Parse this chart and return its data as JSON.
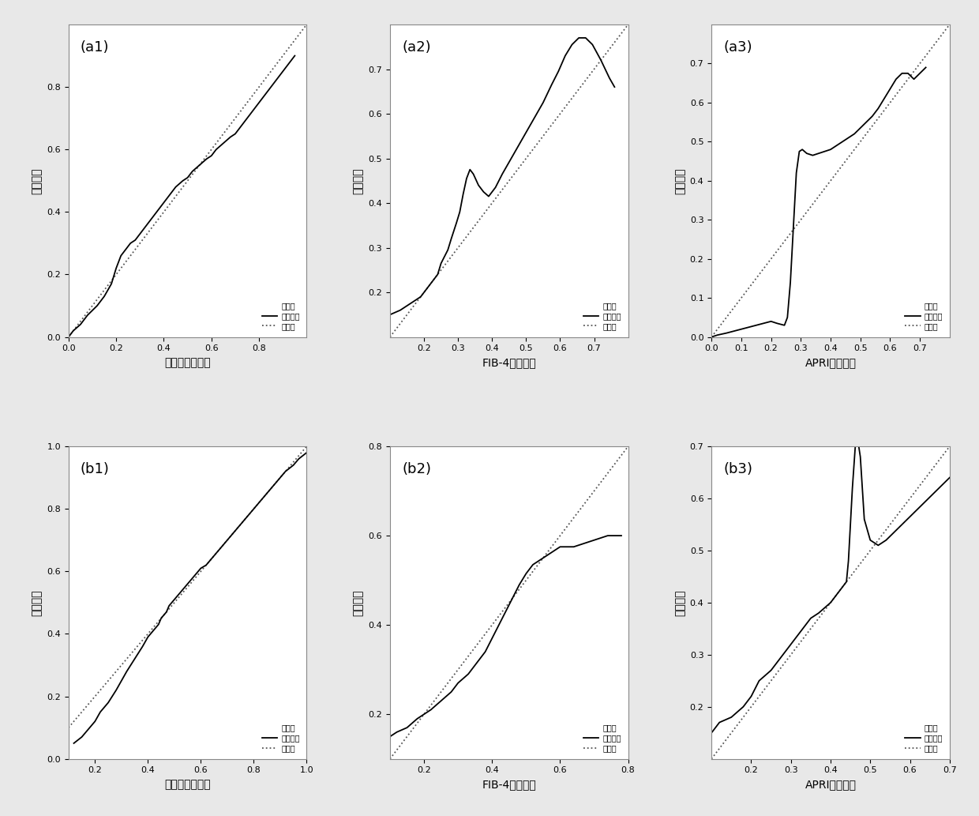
{
  "panels": [
    {
      "label": "(a1)",
      "xlabel": "列线图预测概率",
      "ylabel": "实际概率",
      "xlim": [
        0.0,
        1.0
      ],
      "ylim": [
        0.0,
        1.0
      ],
      "xticks": [
        0.0,
        0.2,
        0.4,
        0.6,
        0.8
      ],
      "yticks": [
        0.0,
        0.2,
        0.4,
        0.6,
        0.8
      ],
      "curve_x": [
        0.0,
        0.02,
        0.05,
        0.08,
        0.12,
        0.15,
        0.18,
        0.2,
        0.22,
        0.24,
        0.26,
        0.28,
        0.3,
        0.32,
        0.35,
        0.38,
        0.4,
        0.42,
        0.45,
        0.48,
        0.5,
        0.52,
        0.55,
        0.58,
        0.6,
        0.62,
        0.65,
        0.68,
        0.7,
        0.72,
        0.75,
        0.78,
        0.8,
        0.82,
        0.85,
        0.88,
        0.9,
        0.93,
        0.95
      ],
      "curve_y": [
        0.0,
        0.02,
        0.04,
        0.07,
        0.1,
        0.13,
        0.17,
        0.22,
        0.26,
        0.28,
        0.3,
        0.31,
        0.33,
        0.35,
        0.38,
        0.41,
        0.43,
        0.45,
        0.48,
        0.5,
        0.51,
        0.53,
        0.55,
        0.57,
        0.58,
        0.6,
        0.62,
        0.64,
        0.65,
        0.67,
        0.7,
        0.73,
        0.75,
        0.77,
        0.8,
        0.83,
        0.85,
        0.88,
        0.9
      ]
    },
    {
      "label": "(a2)",
      "xlabel": "FIB-4预测概率",
      "ylabel": "实际概率",
      "xlim": [
        0.1,
        0.8
      ],
      "ylim": [
        0.1,
        0.8
      ],
      "xticks": [
        0.2,
        0.3,
        0.4,
        0.5,
        0.6,
        0.7
      ],
      "yticks": [
        0.2,
        0.3,
        0.4,
        0.5,
        0.6,
        0.7
      ],
      "curve_x": [
        0.1,
        0.13,
        0.15,
        0.17,
        0.19,
        0.2,
        0.22,
        0.24,
        0.25,
        0.27,
        0.28,
        0.295,
        0.305,
        0.315,
        0.325,
        0.335,
        0.345,
        0.36,
        0.375,
        0.39,
        0.41,
        0.43,
        0.46,
        0.49,
        0.52,
        0.55,
        0.575,
        0.595,
        0.615,
        0.635,
        0.655,
        0.675,
        0.695,
        0.72,
        0.745,
        0.76
      ],
      "curve_y": [
        0.15,
        0.16,
        0.17,
        0.18,
        0.19,
        0.2,
        0.22,
        0.24,
        0.265,
        0.295,
        0.32,
        0.355,
        0.38,
        0.42,
        0.455,
        0.475,
        0.465,
        0.44,
        0.425,
        0.415,
        0.435,
        0.465,
        0.505,
        0.545,
        0.585,
        0.625,
        0.665,
        0.695,
        0.73,
        0.755,
        0.77,
        0.77,
        0.755,
        0.72,
        0.68,
        0.66
      ]
    },
    {
      "label": "(a3)",
      "xlabel": "APRI预测概率",
      "ylabel": "实际概率",
      "xlim": [
        0.0,
        0.8
      ],
      "ylim": [
        0.0,
        0.8
      ],
      "xticks": [
        0.0,
        0.1,
        0.2,
        0.3,
        0.4,
        0.5,
        0.6,
        0.7
      ],
      "yticks": [
        0.0,
        0.1,
        0.2,
        0.3,
        0.4,
        0.5,
        0.6,
        0.7
      ],
      "curve_x": [
        0.0,
        0.02,
        0.05,
        0.1,
        0.15,
        0.2,
        0.22,
        0.245,
        0.255,
        0.265,
        0.275,
        0.285,
        0.295,
        0.305,
        0.32,
        0.34,
        0.36,
        0.38,
        0.4,
        0.42,
        0.44,
        0.46,
        0.48,
        0.5,
        0.52,
        0.54,
        0.56,
        0.58,
        0.6,
        0.62,
        0.64,
        0.66,
        0.68,
        0.7,
        0.72
      ],
      "curve_y": [
        0.0,
        0.005,
        0.01,
        0.02,
        0.03,
        0.04,
        0.035,
        0.03,
        0.05,
        0.14,
        0.28,
        0.42,
        0.475,
        0.48,
        0.47,
        0.465,
        0.47,
        0.475,
        0.48,
        0.49,
        0.5,
        0.51,
        0.52,
        0.535,
        0.55,
        0.565,
        0.585,
        0.61,
        0.635,
        0.66,
        0.675,
        0.675,
        0.66,
        0.675,
        0.69
      ]
    },
    {
      "label": "(b1)",
      "xlabel": "列线图预测概率",
      "ylabel": "实际概率",
      "xlim": [
        0.1,
        1.0
      ],
      "ylim": [
        0.0,
        1.0
      ],
      "xticks": [
        0.2,
        0.4,
        0.6,
        0.8,
        1.0
      ],
      "yticks": [
        0.0,
        0.2,
        0.4,
        0.6,
        0.8,
        1.0
      ],
      "curve_x": [
        0.12,
        0.15,
        0.18,
        0.2,
        0.22,
        0.25,
        0.28,
        0.3,
        0.32,
        0.35,
        0.38,
        0.4,
        0.42,
        0.44,
        0.45,
        0.46,
        0.47,
        0.48,
        0.5,
        0.52,
        0.55,
        0.58,
        0.6,
        0.62,
        0.65,
        0.68,
        0.7,
        0.72,
        0.75,
        0.78,
        0.8,
        0.82,
        0.85,
        0.88,
        0.9,
        0.92,
        0.95,
        0.97,
        1.0
      ],
      "curve_y": [
        0.05,
        0.07,
        0.1,
        0.12,
        0.15,
        0.18,
        0.22,
        0.25,
        0.28,
        0.32,
        0.36,
        0.39,
        0.41,
        0.43,
        0.45,
        0.46,
        0.47,
        0.49,
        0.51,
        0.53,
        0.56,
        0.59,
        0.61,
        0.62,
        0.65,
        0.68,
        0.7,
        0.72,
        0.75,
        0.78,
        0.8,
        0.82,
        0.85,
        0.88,
        0.9,
        0.92,
        0.94,
        0.96,
        0.98
      ]
    },
    {
      "label": "(b2)",
      "xlabel": "FIB-4预测概率",
      "ylabel": "实际概率",
      "xlim": [
        0.1,
        0.8
      ],
      "ylim": [
        0.1,
        0.8
      ],
      "xticks": [
        0.2,
        0.4,
        0.6,
        0.8
      ],
      "yticks": [
        0.2,
        0.4,
        0.6,
        0.8
      ],
      "curve_x": [
        0.1,
        0.12,
        0.15,
        0.18,
        0.2,
        0.22,
        0.25,
        0.28,
        0.3,
        0.33,
        0.35,
        0.38,
        0.4,
        0.42,
        0.44,
        0.46,
        0.48,
        0.5,
        0.52,
        0.54,
        0.56,
        0.58,
        0.6,
        0.62,
        0.64,
        0.66,
        0.68,
        0.7,
        0.72,
        0.74,
        0.76,
        0.78
      ],
      "curve_y": [
        0.15,
        0.16,
        0.17,
        0.19,
        0.2,
        0.21,
        0.23,
        0.25,
        0.27,
        0.29,
        0.31,
        0.34,
        0.37,
        0.4,
        0.43,
        0.46,
        0.49,
        0.515,
        0.535,
        0.545,
        0.555,
        0.565,
        0.575,
        0.575,
        0.575,
        0.58,
        0.585,
        0.59,
        0.595,
        0.6,
        0.6,
        0.6
      ]
    },
    {
      "label": "(b3)",
      "xlabel": "APRI预测概率",
      "ylabel": "实际概率",
      "xlim": [
        0.1,
        0.7
      ],
      "ylim": [
        0.1,
        0.7
      ],
      "xticks": [
        0.2,
        0.3,
        0.4,
        0.5,
        0.6,
        0.7
      ],
      "yticks": [
        0.2,
        0.3,
        0.4,
        0.5,
        0.6,
        0.7
      ],
      "curve_x": [
        0.1,
        0.12,
        0.15,
        0.18,
        0.2,
        0.22,
        0.25,
        0.28,
        0.3,
        0.33,
        0.35,
        0.37,
        0.4,
        0.42,
        0.44,
        0.445,
        0.455,
        0.465,
        0.475,
        0.485,
        0.5,
        0.52,
        0.54,
        0.56,
        0.58,
        0.6,
        0.62,
        0.64,
        0.66,
        0.68,
        0.7
      ],
      "curve_y": [
        0.15,
        0.17,
        0.18,
        0.2,
        0.22,
        0.25,
        0.27,
        0.3,
        0.32,
        0.35,
        0.37,
        0.38,
        0.4,
        0.42,
        0.44,
        0.48,
        0.62,
        0.73,
        0.68,
        0.56,
        0.52,
        0.51,
        0.52,
        0.535,
        0.55,
        0.565,
        0.58,
        0.595,
        0.61,
        0.625,
        0.64
      ]
    }
  ],
  "legend_labels": [
    "实测奖",
    "校正偏差",
    "理想奖"
  ],
  "bg_color": "#e8e8e8",
  "plot_bg_color": "#ffffff",
  "line_color": "#000000",
  "dotted_color": "#555555",
  "font_size": 8,
  "label_font_size": 10,
  "title_font_size": 13
}
